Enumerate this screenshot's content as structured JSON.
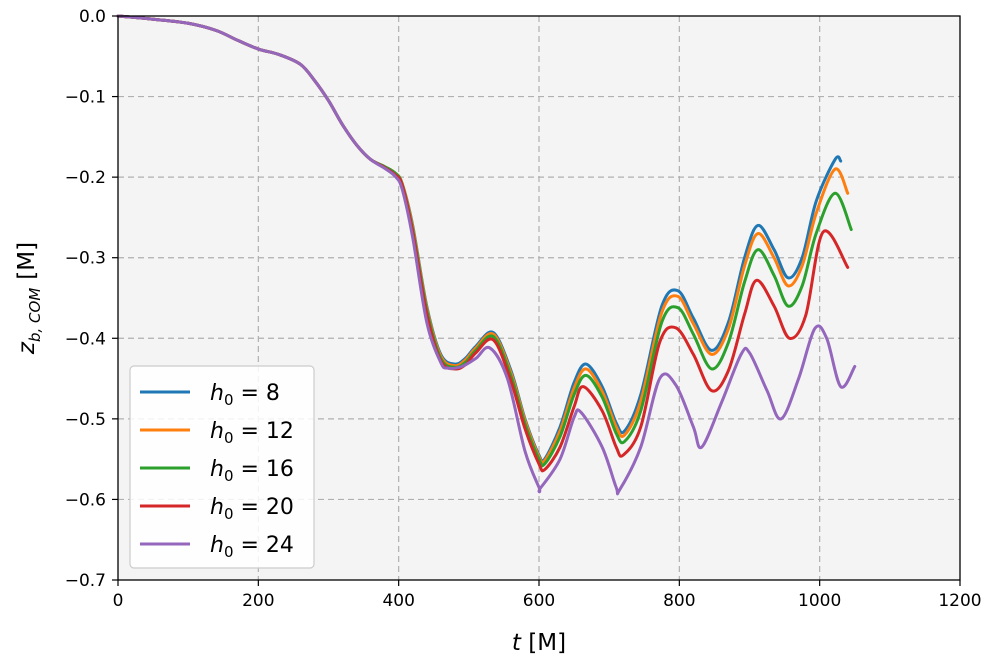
{
  "chart_data": {
    "type": "line",
    "title": "",
    "xlabel_var": "t",
    "xlabel_unit": "[M]",
    "ylabel_var": "z",
    "ylabel_sub": "b, COM",
    "ylabel_unit": "[M]",
    "xlim": [
      0,
      1200
    ],
    "ylim": [
      -0.7,
      0.0
    ],
    "xticks": [
      0,
      200,
      400,
      600,
      800,
      1000,
      1200
    ],
    "xtick_labels": [
      "0",
      "200",
      "400",
      "600",
      "800",
      "1000",
      "1200"
    ],
    "yticks": [
      0.0,
      -0.1,
      -0.2,
      -0.3,
      -0.4,
      -0.5,
      -0.6,
      -0.7
    ],
    "ytick_labels": [
      "0.0",
      "−0.1",
      "−0.2",
      "−0.3",
      "−0.4",
      "−0.5",
      "−0.6",
      "−0.7"
    ],
    "grid": true,
    "legend_position": "lower-left",
    "background": "#f4f4f4",
    "series": [
      {
        "name": "h0 = 8",
        "legend_var": "h",
        "legend_sub": "0",
        "legend_eq": " = 8",
        "color": "#1f77b4",
        "x": [
          0,
          50,
          100,
          140,
          170,
          200,
          230,
          260,
          280,
          300,
          320,
          340,
          360,
          380,
          395,
          405,
          420,
          440,
          460,
          480,
          495,
          510,
          535,
          560,
          580,
          600,
          608,
          630,
          650,
          667,
          690,
          710,
          722,
          745,
          775,
          798,
          820,
          846,
          870,
          893,
          912,
          935,
          955,
          975,
          995,
          1022,
          1030
        ],
        "y": [
          0,
          -0.004,
          -0.009,
          -0.018,
          -0.03,
          -0.041,
          -0.048,
          -0.06,
          -0.08,
          -0.105,
          -0.135,
          -0.16,
          -0.178,
          -0.187,
          -0.195,
          -0.208,
          -0.26,
          -0.36,
          -0.42,
          -0.432,
          -0.425,
          -0.41,
          -0.393,
          -0.44,
          -0.5,
          -0.545,
          -0.55,
          -0.51,
          -0.455,
          -0.432,
          -0.46,
          -0.505,
          -0.515,
          -0.47,
          -0.36,
          -0.341,
          -0.375,
          -0.415,
          -0.38,
          -0.3,
          -0.26,
          -0.29,
          -0.325,
          -0.3,
          -0.23,
          -0.178,
          -0.18
        ]
      },
      {
        "name": "h0 = 12",
        "legend_var": "h",
        "legend_sub": "0",
        "legend_eq": " = 12",
        "color": "#ff7f0e",
        "x": [
          0,
          50,
          100,
          140,
          170,
          200,
          230,
          260,
          280,
          300,
          320,
          340,
          360,
          380,
          395,
          405,
          420,
          440,
          460,
          480,
          495,
          510,
          535,
          560,
          580,
          600,
          608,
          630,
          650,
          667,
          690,
          710,
          722,
          745,
          775,
          798,
          820,
          846,
          870,
          893,
          912,
          935,
          955,
          975,
          995,
          1022,
          1040
        ],
        "y": [
          0,
          -0.004,
          -0.009,
          -0.018,
          -0.03,
          -0.041,
          -0.048,
          -0.06,
          -0.08,
          -0.105,
          -0.135,
          -0.16,
          -0.178,
          -0.187,
          -0.195,
          -0.208,
          -0.262,
          -0.362,
          -0.422,
          -0.434,
          -0.427,
          -0.412,
          -0.395,
          -0.443,
          -0.502,
          -0.547,
          -0.552,
          -0.515,
          -0.462,
          -0.438,
          -0.466,
          -0.51,
          -0.52,
          -0.478,
          -0.368,
          -0.348,
          -0.382,
          -0.42,
          -0.388,
          -0.31,
          -0.27,
          -0.3,
          -0.335,
          -0.31,
          -0.245,
          -0.19,
          -0.22
        ]
      },
      {
        "name": "h0 = 16",
        "legend_var": "h",
        "legend_sub": "0",
        "legend_eq": " = 16",
        "color": "#2ca02c",
        "x": [
          0,
          50,
          100,
          140,
          170,
          200,
          230,
          260,
          280,
          300,
          320,
          340,
          360,
          380,
          395,
          405,
          420,
          440,
          460,
          480,
          495,
          510,
          535,
          560,
          580,
          600,
          608,
          630,
          650,
          667,
          690,
          710,
          722,
          745,
          775,
          798,
          820,
          846,
          870,
          893,
          912,
          935,
          955,
          975,
          995,
          1022,
          1045
        ],
        "y": [
          0,
          -0.004,
          -0.009,
          -0.018,
          -0.03,
          -0.041,
          -0.048,
          -0.06,
          -0.08,
          -0.105,
          -0.135,
          -0.16,
          -0.178,
          -0.187,
          -0.195,
          -0.209,
          -0.265,
          -0.365,
          -0.425,
          -0.436,
          -0.43,
          -0.415,
          -0.398,
          -0.447,
          -0.506,
          -0.55,
          -0.556,
          -0.522,
          -0.47,
          -0.446,
          -0.473,
          -0.518,
          -0.528,
          -0.49,
          -0.38,
          -0.362,
          -0.395,
          -0.438,
          -0.405,
          -0.33,
          -0.29,
          -0.322,
          -0.36,
          -0.335,
          -0.27,
          -0.22,
          -0.265
        ]
      },
      {
        "name": "h0 = 20",
        "legend_var": "h",
        "legend_sub": "0",
        "legend_eq": " = 20",
        "color": "#d62728",
        "x": [
          0,
          50,
          100,
          140,
          170,
          200,
          230,
          260,
          280,
          300,
          320,
          340,
          360,
          380,
          395,
          405,
          420,
          440,
          460,
          480,
          495,
          510,
          535,
          560,
          580,
          600,
          608,
          630,
          650,
          663,
          690,
          710,
          720,
          745,
          772,
          795,
          820,
          846,
          870,
          893,
          910,
          935,
          957,
          980,
          1005,
          1040
        ],
        "y": [
          0,
          -0.004,
          -0.009,
          -0.018,
          -0.03,
          -0.041,
          -0.048,
          -0.06,
          -0.08,
          -0.105,
          -0.135,
          -0.16,
          -0.178,
          -0.188,
          -0.197,
          -0.21,
          -0.268,
          -0.37,
          -0.428,
          -0.438,
          -0.433,
          -0.418,
          -0.402,
          -0.453,
          -0.512,
          -0.556,
          -0.563,
          -0.535,
          -0.485,
          -0.46,
          -0.49,
          -0.535,
          -0.545,
          -0.51,
          -0.405,
          -0.387,
          -0.42,
          -0.465,
          -0.44,
          -0.37,
          -0.328,
          -0.36,
          -0.4,
          -0.372,
          -0.268,
          -0.312
        ]
      },
      {
        "name": "h0 = 24",
        "legend_var": "h",
        "legend_sub": "0",
        "legend_eq": " = 24",
        "color": "#9467bd",
        "x": [
          0,
          50,
          100,
          140,
          170,
          200,
          230,
          260,
          280,
          300,
          320,
          340,
          360,
          380,
          395,
          405,
          420,
          440,
          460,
          470,
          490,
          510,
          530,
          555,
          580,
          600,
          602,
          630,
          650,
          660,
          690,
          710,
          715,
          745,
          772,
          795,
          820,
          832,
          860,
          888,
          900,
          925,
          945,
          970,
          993,
          1010,
          1030,
          1050
        ],
        "y": [
          0,
          -0.004,
          -0.009,
          -0.018,
          -0.03,
          -0.041,
          -0.048,
          -0.06,
          -0.08,
          -0.105,
          -0.135,
          -0.16,
          -0.178,
          -0.189,
          -0.199,
          -0.215,
          -0.275,
          -0.38,
          -0.43,
          -0.437,
          -0.435,
          -0.425,
          -0.412,
          -0.45,
          -0.54,
          -0.585,
          -0.586,
          -0.55,
          -0.498,
          -0.492,
          -0.535,
          -0.585,
          -0.588,
          -0.535,
          -0.45,
          -0.458,
          -0.51,
          -0.535,
          -0.48,
          -0.42,
          -0.418,
          -0.465,
          -0.5,
          -0.45,
          -0.388,
          -0.4,
          -0.46,
          -0.435
        ]
      }
    ]
  }
}
